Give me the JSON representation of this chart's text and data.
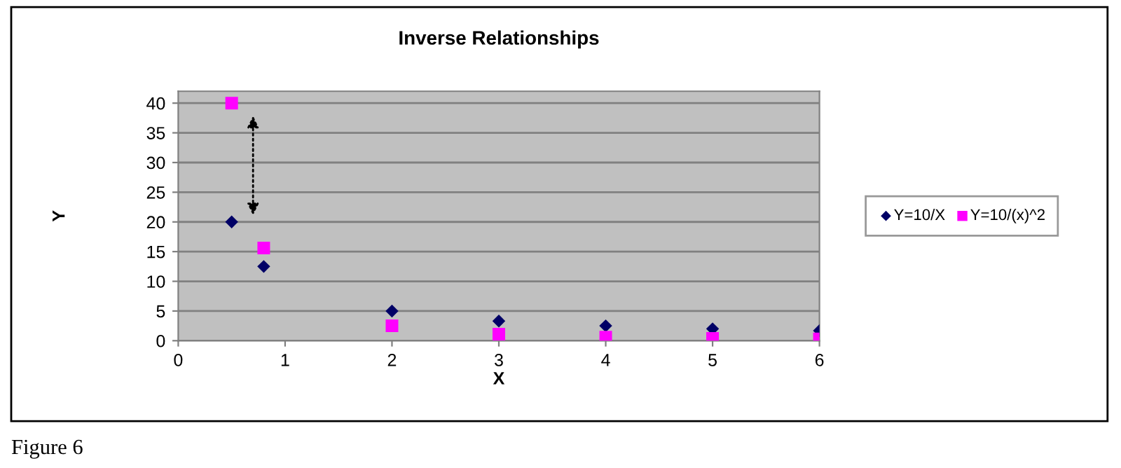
{
  "chart_data": {
    "type": "scatter",
    "title": "Inverse Relationships",
    "xlabel": "X",
    "ylabel": "Y",
    "annotations": [
      "Figure 6"
    ],
    "series": [
      {
        "name": "Y=10/X",
        "color": "#000066",
        "marker": "diamond",
        "x": [
          0.5,
          0.8,
          2,
          3,
          4,
          5,
          6
        ],
        "values": [
          20,
          12.5,
          5,
          3.3,
          2.5,
          2,
          1.7
        ]
      },
      {
        "name": "Y=10/(x)^2",
        "color": "#ff00ff",
        "marker": "square",
        "x": [
          0.5,
          0.8,
          2,
          3,
          4,
          5,
          6
        ],
        "values": [
          40,
          15.6,
          2.5,
          1.1,
          0.6,
          0.4,
          0.3
        ]
      }
    ],
    "xlim": [
      0,
      6
    ],
    "ylim": [
      0,
      42
    ],
    "xticks": [
      0,
      1,
      2,
      3,
      4,
      5,
      6
    ],
    "yticks": [
      0,
      5,
      10,
      15,
      20,
      25,
      30,
      35,
      40
    ],
    "grid": "y",
    "legend": "right"
  }
}
